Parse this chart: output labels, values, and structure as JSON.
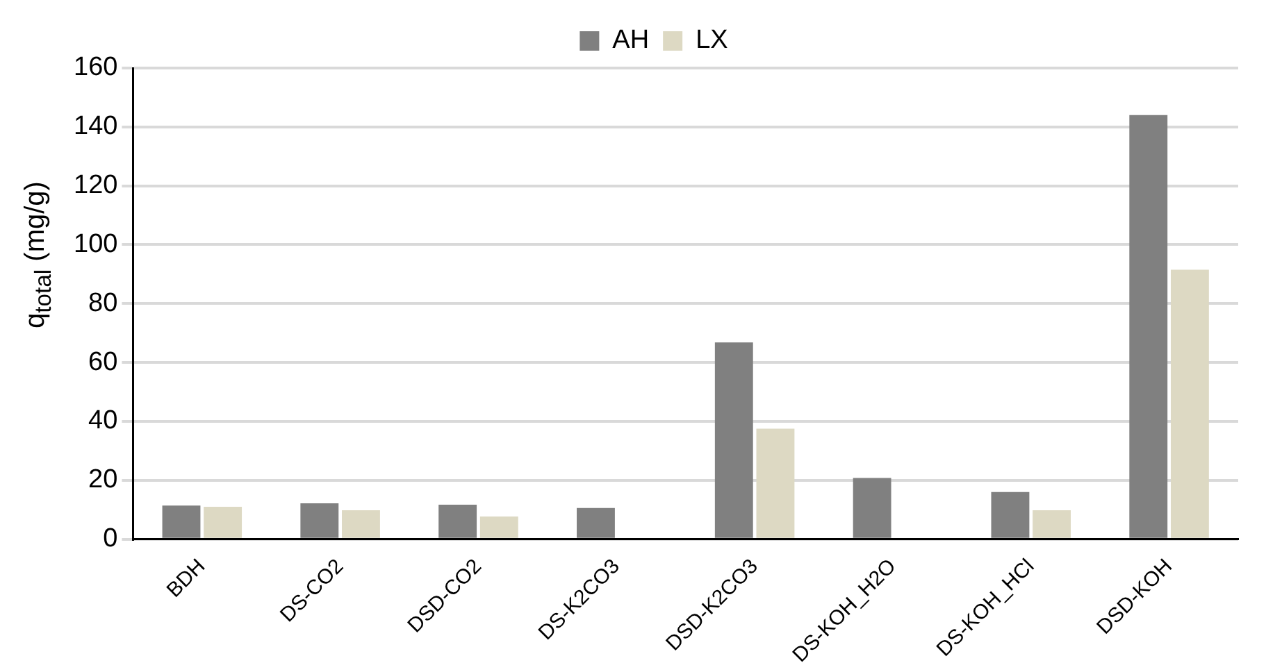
{
  "chart_data": {
    "type": "bar",
    "ylabel": "q$_{total}$ (mg/g)",
    "categories": [
      "BDH",
      "DS-CO2",
      "DSD-CO2",
      "DS-K2CO3",
      "DSD-K2CO3",
      "DS-KOH_H2O",
      "DS-KOH_HCl",
      "DSD-KOH"
    ],
    "series": [
      {
        "name": "AH",
        "color": "#808080",
        "values": [
          11.4,
          12.2,
          11.7,
          10.6,
          66.8,
          20.8,
          16,
          144
        ]
      },
      {
        "name": "LX",
        "color": "#ddd9c3",
        "values": [
          11,
          9.8,
          7.7,
          0,
          37.5,
          0,
          9.8,
          91.5
        ]
      }
    ],
    "ylim": [
      0,
      160
    ],
    "yticks": [
      0,
      20,
      40,
      60,
      80,
      100,
      120,
      140,
      160
    ],
    "grid": "y",
    "legend": "top"
  }
}
